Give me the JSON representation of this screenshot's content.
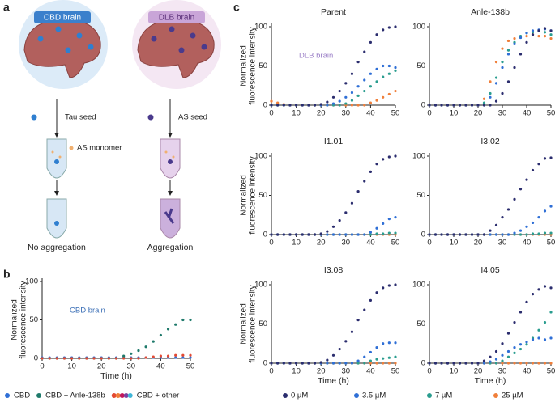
{
  "panel_labels": [
    "a",
    "b",
    "c"
  ],
  "diagram": {
    "left_title": "CBD brain",
    "right_title": "DLB brain",
    "left_seed": "Tau seed",
    "right_seed": "AS seed",
    "monomer": "AS monomer",
    "left_result": "No aggregation",
    "right_result": "Aggregation"
  },
  "chart_data": [
    {
      "type": "scatter",
      "title": "Parent",
      "ylabel": "Normalized fluorescence intensity",
      "annotation": "DLB brain",
      "annotation_color": "#9b7fc7",
      "x": [
        0,
        2.5,
        5,
        7.5,
        10,
        12.5,
        15,
        17.5,
        20,
        22.5,
        25,
        27.5,
        30,
        32.5,
        35,
        37.5,
        40,
        42.5,
        45,
        47.5,
        50
      ],
      "xlim": [
        0,
        50
      ],
      "xticks": [
        0,
        10,
        20,
        30,
        40,
        50
      ],
      "ylim": [
        0,
        100
      ],
      "yticks": [
        0,
        50,
        100
      ],
      "series": [
        {
          "name": "25 µM",
          "color": "#f07f3a",
          "values": [
            5,
            3,
            1,
            0,
            0,
            0,
            0,
            0,
            0,
            0,
            0,
            0,
            0,
            0,
            0,
            0,
            3,
            6,
            10,
            14,
            18
          ]
        },
        {
          "name": "7 µM",
          "color": "#2a9d8f",
          "values": [
            0,
            0,
            0,
            0,
            0,
            0,
            0,
            0,
            0,
            0,
            0,
            0,
            2,
            6,
            12,
            18,
            24,
            30,
            36,
            40,
            44
          ]
        },
        {
          "name": "3.5 µM",
          "color": "#2f6fd6",
          "values": [
            0,
            0,
            0,
            0,
            0,
            0,
            0,
            0,
            0,
            0,
            2,
            5,
            10,
            16,
            24,
            32,
            40,
            46,
            50,
            50,
            48
          ]
        },
        {
          "name": "0 µM",
          "color": "#2b2d6e",
          "values": [
            0,
            0,
            0,
            0,
            0,
            0,
            0,
            0,
            1,
            4,
            10,
            18,
            28,
            40,
            55,
            68,
            80,
            90,
            96,
            99,
            100
          ]
        }
      ]
    },
    {
      "type": "scatter",
      "title": "Anle-138b",
      "x": [
        0,
        2.5,
        5,
        7.5,
        10,
        12.5,
        15,
        17.5,
        20,
        22.5,
        25,
        27.5,
        30,
        32.5,
        35,
        37.5,
        40,
        42.5,
        45,
        47.5,
        50
      ],
      "xlim": [
        0,
        50
      ],
      "xticks": [
        0,
        10,
        20,
        30,
        40,
        50
      ],
      "ylim": [
        0,
        100
      ],
      "yticks": [
        0,
        50,
        100
      ],
      "series": [
        {
          "name": "25 µM",
          "color": "#f07f3a",
          "values": [
            0,
            0,
            0,
            0,
            0,
            0,
            0,
            0,
            0,
            8,
            30,
            55,
            72,
            82,
            85,
            87,
            88,
            90,
            88,
            88,
            85
          ]
        },
        {
          "name": "7 µM",
          "color": "#2a9d8f",
          "values": [
            0,
            0,
            0,
            0,
            0,
            0,
            0,
            0,
            0,
            3,
            15,
            35,
            55,
            70,
            80,
            88,
            92,
            93,
            95,
            93,
            90
          ]
        },
        {
          "name": "3.5 µM",
          "color": "#2f6fd6",
          "values": [
            0,
            0,
            0,
            0,
            0,
            0,
            0,
            0,
            0,
            0,
            10,
            28,
            48,
            65,
            78,
            86,
            92,
            95,
            96,
            97,
            95
          ]
        },
        {
          "name": "0 µM",
          "color": "#2b2d6e",
          "values": [
            0,
            0,
            0,
            0,
            0,
            0,
            0,
            0,
            0,
            0,
            0,
            5,
            15,
            30,
            48,
            65,
            80,
            90,
            95,
            98,
            95
          ]
        }
      ]
    },
    {
      "type": "scatter",
      "title": "I1.01",
      "ylabel": "Normalized fluorescence intensity",
      "x": [
        0,
        2.5,
        5,
        7.5,
        10,
        12.5,
        15,
        17.5,
        20,
        22.5,
        25,
        27.5,
        30,
        32.5,
        35,
        37.5,
        40,
        42.5,
        45,
        47.5,
        50
      ],
      "xlim": [
        0,
        50
      ],
      "xticks": [
        0,
        10,
        20,
        30,
        40,
        50
      ],
      "ylim": [
        0,
        100
      ],
      "yticks": [
        0,
        50,
        100
      ],
      "series": [
        {
          "name": "25 µM",
          "color": "#f07f3a",
          "values": [
            0,
            0,
            0,
            0,
            0,
            0,
            0,
            0,
            0,
            0,
            0,
            0,
            0,
            0,
            0,
            0,
            0,
            0,
            0,
            0,
            0
          ]
        },
        {
          "name": "7 µM",
          "color": "#2a9d8f",
          "values": [
            0,
            0,
            0,
            0,
            0,
            0,
            0,
            0,
            0,
            0,
            0,
            0,
            0,
            0,
            0,
            0,
            0,
            1,
            1,
            2,
            2
          ]
        },
        {
          "name": "3.5 µM",
          "color": "#2f6fd6",
          "values": [
            0,
            0,
            0,
            0,
            0,
            0,
            0,
            0,
            0,
            0,
            0,
            0,
            0,
            0,
            0,
            0,
            3,
            8,
            14,
            20,
            22
          ]
        },
        {
          "name": "0 µM",
          "color": "#2b2d6e",
          "values": [
            0,
            0,
            0,
            0,
            0,
            0,
            0,
            0,
            1,
            4,
            10,
            18,
            28,
            40,
            55,
            68,
            80,
            90,
            96,
            99,
            100
          ]
        }
      ]
    },
    {
      "type": "scatter",
      "title": "I3.02",
      "x": [
        0,
        2.5,
        5,
        7.5,
        10,
        12.5,
        15,
        17.5,
        20,
        22.5,
        25,
        27.5,
        30,
        32.5,
        35,
        37.5,
        40,
        42.5,
        45,
        47.5,
        50
      ],
      "xlim": [
        0,
        50
      ],
      "xticks": [
        0,
        10,
        20,
        30,
        40,
        50
      ],
      "ylim": [
        0,
        100
      ],
      "yticks": [
        0,
        50,
        100
      ],
      "series": [
        {
          "name": "25 µM",
          "color": "#f07f3a",
          "values": [
            0,
            0,
            0,
            0,
            0,
            0,
            0,
            0,
            0,
            0,
            0,
            0,
            0,
            0,
            0,
            0,
            0,
            0,
            0,
            0,
            0
          ]
        },
        {
          "name": "7 µM",
          "color": "#2a9d8f",
          "values": [
            0,
            0,
            0,
            0,
            0,
            0,
            0,
            0,
            0,
            0,
            0,
            0,
            0,
            0,
            0,
            0,
            0,
            1,
            1,
            2,
            2
          ]
        },
        {
          "name": "3.5 µM",
          "color": "#2f6fd6",
          "values": [
            0,
            0,
            0,
            0,
            0,
            0,
            0,
            0,
            0,
            0,
            0,
            0,
            0,
            0,
            2,
            5,
            10,
            15,
            22,
            30,
            36
          ]
        },
        {
          "name": "0 µM",
          "color": "#2b2d6e",
          "values": [
            0,
            0,
            0,
            0,
            0,
            0,
            0,
            0,
            0,
            0,
            5,
            12,
            22,
            32,
            45,
            58,
            70,
            82,
            90,
            97,
            98
          ]
        }
      ]
    },
    {
      "type": "scatter",
      "title": "I3.08",
      "ylabel": "Normalized fluorescence intensity",
      "xlabel": "Time (h)",
      "x": [
        0,
        2.5,
        5,
        7.5,
        10,
        12.5,
        15,
        17.5,
        20,
        22.5,
        25,
        27.5,
        30,
        32.5,
        35,
        37.5,
        40,
        42.5,
        45,
        47.5,
        50
      ],
      "xlim": [
        0,
        50
      ],
      "xticks": [
        0,
        10,
        20,
        30,
        40,
        50
      ],
      "ylim": [
        0,
        100
      ],
      "yticks": [
        0,
        50,
        100
      ],
      "series": [
        {
          "name": "25 µM",
          "color": "#f07f3a",
          "values": [
            0,
            0,
            0,
            0,
            0,
            0,
            0,
            0,
            0,
            0,
            0,
            0,
            0,
            0,
            0,
            0,
            0,
            0,
            0,
            0,
            0
          ]
        },
        {
          "name": "7 µM",
          "color": "#2a9d8f",
          "values": [
            0,
            0,
            0,
            0,
            0,
            0,
            0,
            0,
            0,
            0,
            0,
            0,
            0,
            0,
            0,
            0,
            3,
            5,
            6,
            7,
            8
          ]
        },
        {
          "name": "3.5 µM",
          "color": "#2f6fd6",
          "values": [
            0,
            0,
            0,
            0,
            0,
            0,
            0,
            0,
            0,
            0,
            0,
            0,
            0,
            0,
            3,
            8,
            14,
            20,
            25,
            26,
            26
          ]
        },
        {
          "name": "0 µM",
          "color": "#2b2d6e",
          "values": [
            0,
            0,
            0,
            0,
            0,
            0,
            0,
            0,
            1,
            4,
            10,
            18,
            28,
            40,
            55,
            68,
            80,
            90,
            96,
            99,
            100
          ]
        }
      ]
    },
    {
      "type": "scatter",
      "title": "I4.05",
      "xlabel": "Time (h)",
      "x": [
        0,
        2.5,
        5,
        7.5,
        10,
        12.5,
        15,
        17.5,
        20,
        22.5,
        25,
        27.5,
        30,
        32.5,
        35,
        37.5,
        40,
        42.5,
        45,
        47.5,
        50
      ],
      "xlim": [
        0,
        50
      ],
      "xticks": [
        0,
        10,
        20,
        30,
        40,
        50
      ],
      "ylim": [
        0,
        100
      ],
      "yticks": [
        0,
        50,
        100
      ],
      "series": [
        {
          "name": "25 µM",
          "color": "#f07f3a",
          "values": [
            0,
            0,
            0,
            0,
            0,
            0,
            0,
            0,
            0,
            0,
            0,
            0,
            0,
            0,
            0,
            0,
            0,
            0,
            0,
            0,
            0
          ]
        },
        {
          "name": "7 µM",
          "color": "#2a9d8f",
          "values": [
            0,
            0,
            0,
            0,
            0,
            0,
            0,
            0,
            0,
            0,
            0,
            0,
            3,
            8,
            13,
            18,
            24,
            32,
            42,
            52,
            65
          ]
        },
        {
          "name": "3.5 µM",
          "color": "#2f6fd6",
          "values": [
            0,
            0,
            0,
            0,
            0,
            0,
            0,
            0,
            0,
            0,
            2,
            5,
            10,
            15,
            20,
            24,
            27,
            30,
            32,
            30,
            32
          ]
        },
        {
          "name": "0 µM",
          "color": "#2b2d6e",
          "values": [
            0,
            0,
            0,
            0,
            0,
            0,
            0,
            0,
            0,
            3,
            8,
            15,
            25,
            38,
            52,
            65,
            78,
            88,
            94,
            98,
            96
          ]
        }
      ]
    },
    {
      "type": "scatter",
      "ylabel": "Normalized fluorescence intensity",
      "xlabel": "Time (h)",
      "annotation": "CBD brain",
      "annotation_color": "#3b6fb6",
      "x": [
        0,
        2.5,
        5,
        7.5,
        10,
        12.5,
        15,
        17.5,
        20,
        22.5,
        25,
        27.5,
        30,
        32.5,
        35,
        37.5,
        40,
        42.5,
        45,
        47.5,
        50
      ],
      "xlim": [
        0,
        50
      ],
      "xticks": [
        0,
        10,
        20,
        30,
        40,
        50
      ],
      "ylim": [
        0,
        100
      ],
      "yticks": [
        0,
        50,
        100
      ],
      "series": [
        {
          "name": "CBD",
          "color": "#2f6fd6",
          "values": [
            1,
            1,
            1,
            1,
            1,
            1,
            1,
            1,
            1,
            1,
            1,
            1,
            1,
            1,
            1,
            1,
            1,
            1,
            1,
            1,
            1
          ]
        },
        {
          "name": "CBD + Anle-138b",
          "color": "#1f7a6b",
          "values": [
            0,
            0,
            0,
            0,
            0,
            0,
            0,
            0,
            0,
            0,
            0,
            3,
            6,
            10,
            15,
            22,
            30,
            38,
            44,
            50,
            50
          ]
        },
        {
          "name": "CBD + other",
          "color": "#e34a33",
          "legend_colors": [
            "#e34a33",
            "#f07f3a",
            "#c2185b",
            "#7b3fa0",
            "#3fb6d8"
          ],
          "values": [
            0,
            0,
            0,
            0,
            0,
            0,
            0,
            0,
            0,
            0,
            0,
            0,
            0,
            0,
            1,
            2,
            3,
            3,
            4,
            4,
            4
          ]
        }
      ]
    }
  ]
}
